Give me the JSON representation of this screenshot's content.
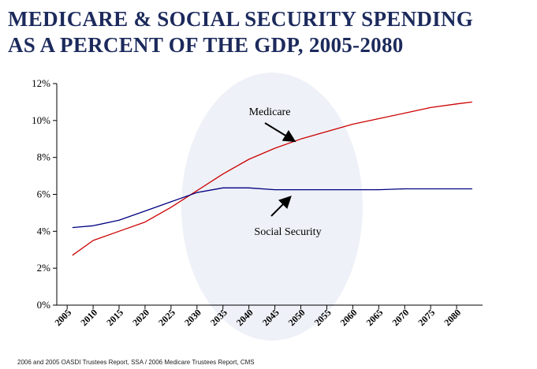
{
  "title_lines": [
    "MEDICARE & SOCIAL SECURITY SPENDING",
    "AS A PERCENT OF THE GDP, 2005-2080"
  ],
  "source": "2006 and 2005 OASDI Trustees Report, SSA / 2006 Medicare Trustees Report, CMS",
  "colors": {
    "title": "#1c2a5c",
    "medicare": "#cc0000",
    "social_security": "#000080",
    "axis": "#000000"
  },
  "chart_data": {
    "type": "line",
    "title": "MEDICARE & SOCIAL SECURITY SPENDING AS A PERCENT OF THE GDP, 2005-2080",
    "xlabel": "",
    "ylabel": "",
    "x_ticks": [
      "2005",
      "2010",
      "2015",
      "2020",
      "2025",
      "2030",
      "2035",
      "2040",
      "2045",
      "2050",
      "2055",
      "2060",
      "2065",
      "2070",
      "2075",
      "2080"
    ],
    "y_ticks": [
      "0%",
      "2%",
      "4%",
      "6%",
      "8%",
      "10%",
      "12%"
    ],
    "ylim": [
      0,
      12
    ],
    "grid": false,
    "legend": "none",
    "series": [
      {
        "name": "Medicare",
        "x": [
          "2006",
          "2010",
          "2015",
          "2020",
          "2025",
          "2030",
          "2035",
          "2040",
          "2045",
          "2050",
          "2055",
          "2060",
          "2065",
          "2070",
          "2075",
          "2080",
          "2083"
        ],
        "values": [
          2.7,
          3.5,
          4.0,
          4.5,
          5.3,
          6.2,
          7.1,
          7.9,
          8.5,
          9.0,
          9.4,
          9.8,
          10.1,
          10.4,
          10.7,
          10.9,
          11.0
        ]
      },
      {
        "name": "Social Security",
        "x": [
          "2006",
          "2010",
          "2015",
          "2020",
          "2025",
          "2030",
          "2035",
          "2040",
          "2045",
          "2050",
          "2055",
          "2060",
          "2065",
          "2070",
          "2075",
          "2080",
          "2083"
        ],
        "values": [
          4.2,
          4.3,
          4.6,
          5.1,
          5.6,
          6.1,
          6.35,
          6.35,
          6.25,
          6.25,
          6.25,
          6.25,
          6.25,
          6.3,
          6.3,
          6.3,
          6.3
        ]
      }
    ],
    "annotations": [
      {
        "text": "Medicare",
        "target_series": "Medicare"
      },
      {
        "text": "Social Security",
        "target_series": "Social Security"
      }
    ]
  }
}
